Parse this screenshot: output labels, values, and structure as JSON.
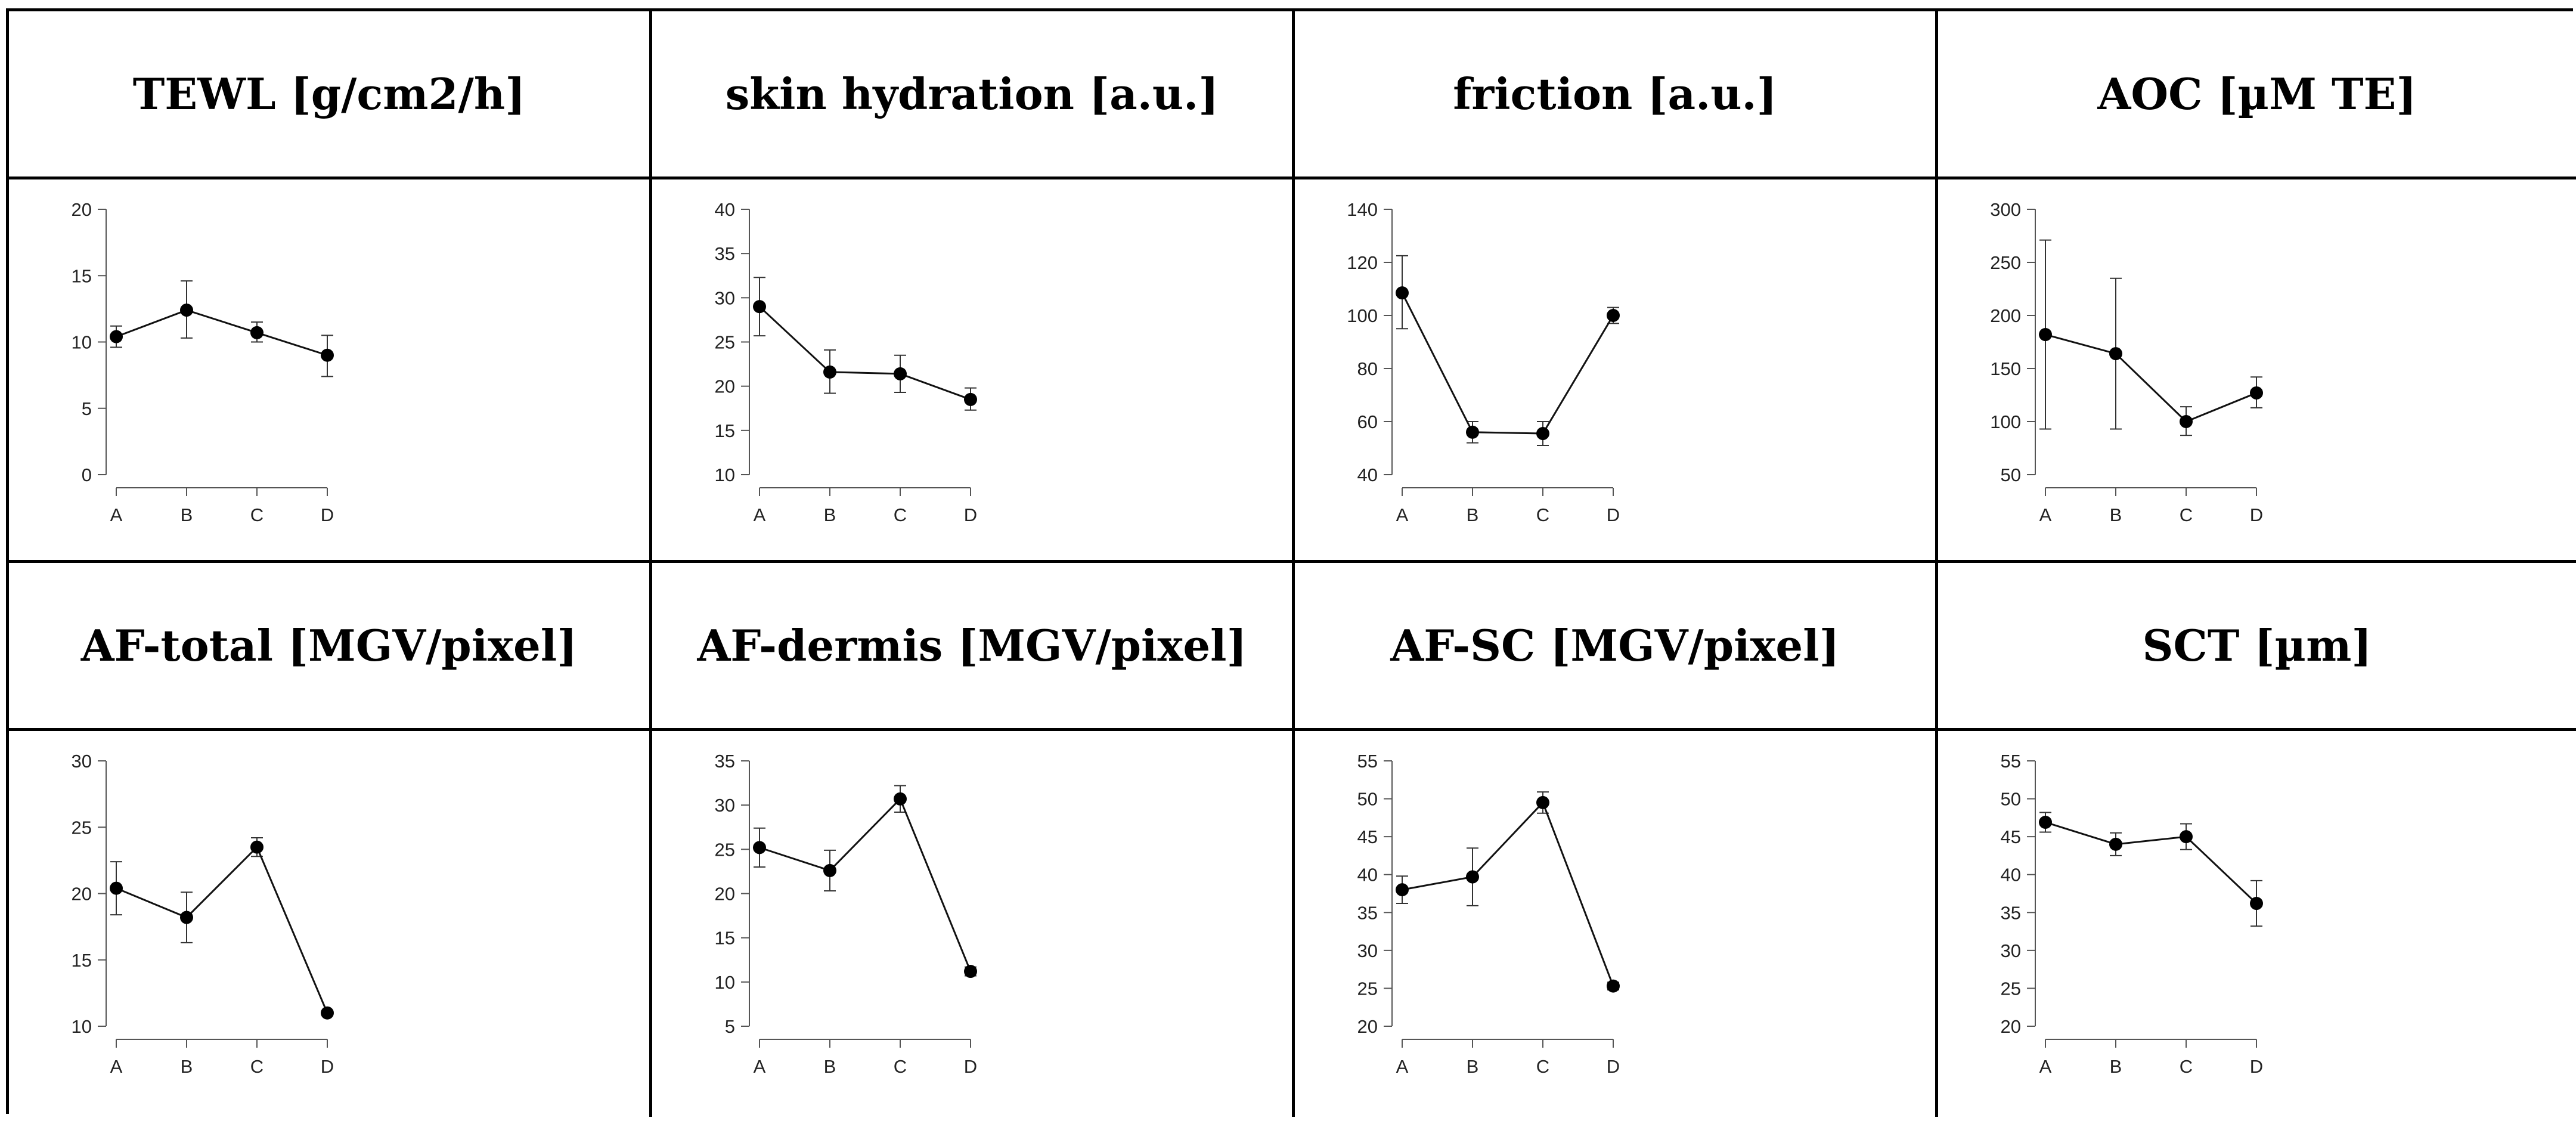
{
  "chart_data": [
    {
      "type": "line",
      "title": "TEWL [g/cm2/h]",
      "categories": [
        "A",
        "B",
        "C",
        "D"
      ],
      "values": [
        10.4,
        12.4,
        10.7,
        9.0
      ],
      "error_low": [
        9.6,
        10.3,
        10.0,
        7.4
      ],
      "error_high": [
        11.2,
        14.6,
        11.5,
        10.5
      ],
      "yticks": [
        0,
        5,
        10,
        15,
        20
      ],
      "ylim": [
        0,
        20
      ]
    },
    {
      "type": "line",
      "title": "skin hydration [a.u.]",
      "categories": [
        "A",
        "B",
        "C",
        "D"
      ],
      "values": [
        29.0,
        21.6,
        21.4,
        18.5
      ],
      "error_low": [
        25.7,
        19.2,
        19.3,
        17.3
      ],
      "error_high": [
        32.3,
        24.1,
        23.5,
        19.8
      ],
      "yticks": [
        10,
        15,
        20,
        25,
        30,
        35,
        40
      ],
      "ylim": [
        10,
        40
      ]
    },
    {
      "type": "line",
      "title": "friction [a.u.]",
      "categories": [
        "A",
        "B",
        "C",
        "D"
      ],
      "values": [
        108.5,
        56.0,
        55.5,
        100.0
      ],
      "error_low": [
        95.0,
        52.0,
        51.0,
        97.0
      ],
      "error_high": [
        122.5,
        60.0,
        60.0,
        103.0
      ],
      "yticks": [
        40,
        60,
        80,
        100,
        120,
        140
      ],
      "ylim": [
        40,
        140
      ]
    },
    {
      "type": "line",
      "title": "AOC [µM TE]",
      "categories": [
        "A",
        "B",
        "C",
        "D"
      ],
      "values": [
        182,
        164,
        100,
        127
      ],
      "error_low": [
        93,
        93,
        87,
        113
      ],
      "error_high": [
        271,
        235,
        114,
        142
      ],
      "yticks": [
        50,
        100,
        150,
        200,
        250,
        300
      ],
      "ylim": [
        50,
        300
      ]
    },
    {
      "type": "line",
      "title": "AF-total [MGV/pixel]",
      "categories": [
        "A",
        "B",
        "C",
        "D"
      ],
      "values": [
        20.4,
        18.2,
        23.5,
        11.0
      ],
      "error_low": [
        18.4,
        16.3,
        22.8,
        10.9
      ],
      "error_high": [
        22.4,
        20.1,
        24.2,
        11.1
      ],
      "yticks": [
        10,
        15,
        20,
        25,
        30
      ],
      "ylim": [
        10,
        30
      ]
    },
    {
      "type": "line",
      "title": "AF-dermis [MGV/pixel]",
      "categories": [
        "A",
        "B",
        "C",
        "D"
      ],
      "values": [
        25.2,
        22.6,
        30.7,
        11.2
      ],
      "error_low": [
        23.0,
        20.3,
        29.2,
        10.7
      ],
      "error_high": [
        27.4,
        24.9,
        32.2,
        11.7
      ],
      "yticks": [
        5,
        10,
        15,
        20,
        25,
        30,
        35
      ],
      "ylim": [
        5,
        35
      ]
    },
    {
      "type": "line",
      "title": "AF-SC [MGV/pixel]",
      "categories": [
        "A",
        "B",
        "C",
        "D"
      ],
      "values": [
        38.0,
        39.7,
        49.5,
        25.3
      ],
      "error_low": [
        36.2,
        35.9,
        48.1,
        24.8
      ],
      "error_high": [
        39.8,
        43.5,
        50.9,
        25.8
      ],
      "yticks": [
        20,
        25,
        30,
        35,
        40,
        45,
        50,
        55
      ],
      "ylim": [
        20,
        55
      ]
    },
    {
      "type": "line",
      "title": "SCT [µm]",
      "categories": [
        "A",
        "B",
        "C",
        "D"
      ],
      "values": [
        46.9,
        44.0,
        45.0,
        36.2
      ],
      "error_low": [
        45.6,
        42.5,
        43.3,
        33.2
      ],
      "error_high": [
        48.2,
        45.5,
        46.7,
        39.2
      ],
      "yticks": [
        20,
        25,
        30,
        35,
        40,
        45,
        50,
        55
      ],
      "ylim": [
        20,
        55
      ]
    }
  ]
}
